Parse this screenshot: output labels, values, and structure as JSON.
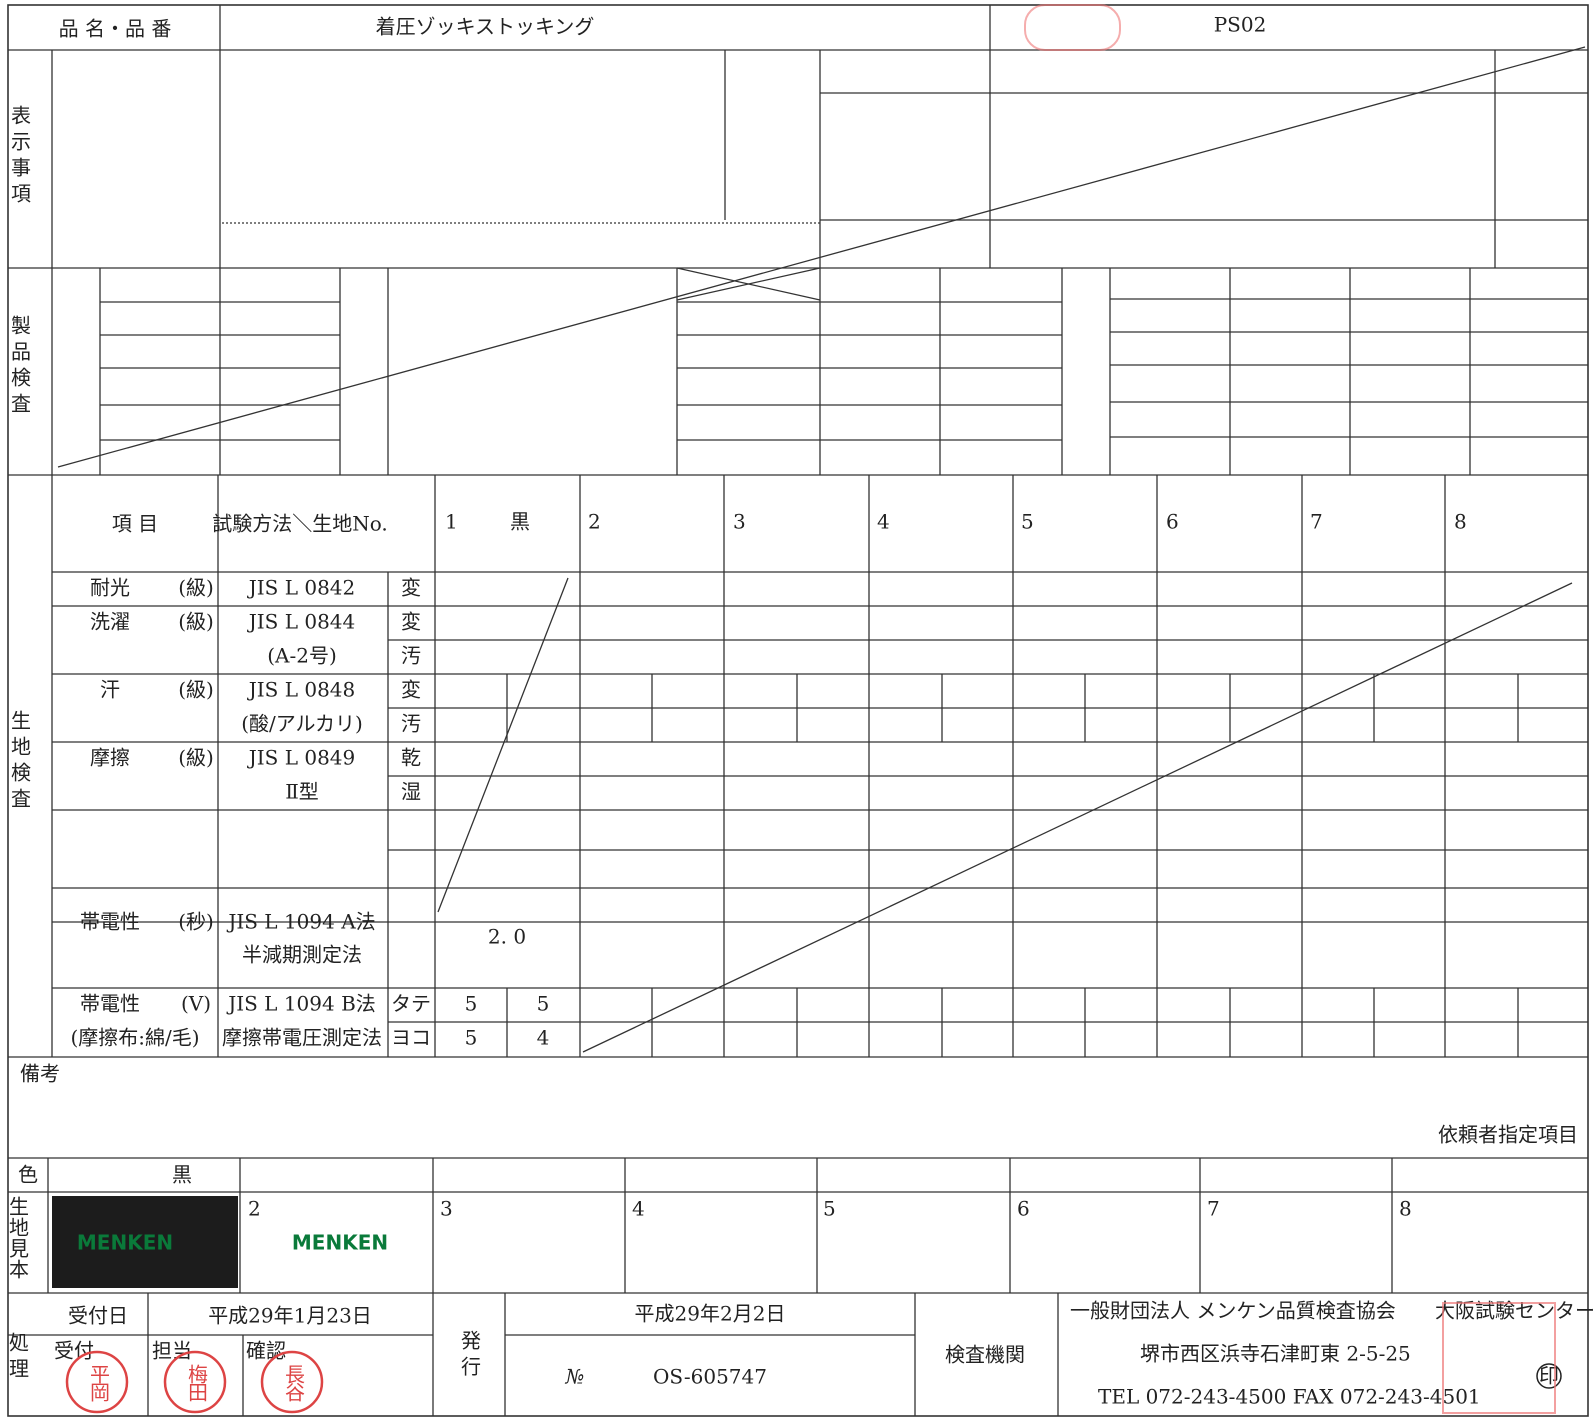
{
  "header": {
    "product_label": "品 名・品 番",
    "product_name": "着圧ゾッキストッキング",
    "product_code": "PS02"
  },
  "sections": {
    "display": "表示事項",
    "product": "製品検査",
    "fabric": "生地検査"
  },
  "fabric_table": {
    "item_header": "項 目",
    "method_header": "試験方法＼生地No.",
    "columns": [
      "1",
      "2",
      "3",
      "4",
      "5",
      "6",
      "7",
      "8"
    ],
    "column_1_color": "黒",
    "rows": [
      {
        "item": "耐光",
        "unit": "(級)",
        "method": "JIS L 0842",
        "aspect": "変"
      },
      {
        "item": "洗濯",
        "unit": "(級)",
        "method": "JIS L 0844",
        "aspect": "変"
      },
      {
        "method": "(A-2号)",
        "aspect": "汚"
      },
      {
        "item": "汗",
        "unit": "(級)",
        "method": "JIS L 0848",
        "aspect": "変"
      },
      {
        "method": "(酸/アルカリ)",
        "aspect": "汚"
      },
      {
        "item": "摩擦",
        "unit": "(級)",
        "method": "JIS L 0849",
        "aspect": "乾"
      },
      {
        "method": "Ⅱ型",
        "aspect": "湿"
      },
      {
        "item": "帯電性",
        "unit": "(秒)",
        "method": "JIS L 1094 A法",
        "method2": "半減期測定法",
        "value": "2. 0"
      },
      {
        "item": "帯電性",
        "unit": "(V)",
        "method": "JIS L 1094 B法",
        "aspect": "タテ",
        "values": [
          "5",
          "5"
        ]
      },
      {
        "item": "(摩擦布:綿/毛)",
        "method": "摩擦帯電圧測定法",
        "aspect": "ヨコ",
        "values": [
          "5",
          "4"
        ]
      }
    ]
  },
  "remarks": {
    "label": "備考",
    "note": "依頼者指定項目"
  },
  "samples": {
    "color_label": "色",
    "color_1": "黒",
    "label": "生地見本",
    "columns": [
      "2",
      "3",
      "4",
      "5",
      "6",
      "7",
      "8"
    ],
    "brand": [
      "MENKEN",
      "MENKEN"
    ]
  },
  "footer": {
    "processing": "処理",
    "received_date_label": "受付日",
    "received_date": "平成29年1月23日",
    "received": "受付",
    "in_charge": "担当",
    "confirmed": "確認",
    "stamps": [
      "平岡",
      "梅田",
      "長谷"
    ],
    "issue": "発行",
    "issue_date": "平成29年2月2日",
    "number_label": "№",
    "number": "OS-605747",
    "agency_label": "検査機関",
    "agency": "一般財団法人 メンケン品質検査協会",
    "branch": "大阪試験センター",
    "address": "堺市西区浜寺石津町東 2-5-25",
    "phone": "TEL 072-243-4500 FAX 072-243-4501",
    "seal": "印"
  }
}
